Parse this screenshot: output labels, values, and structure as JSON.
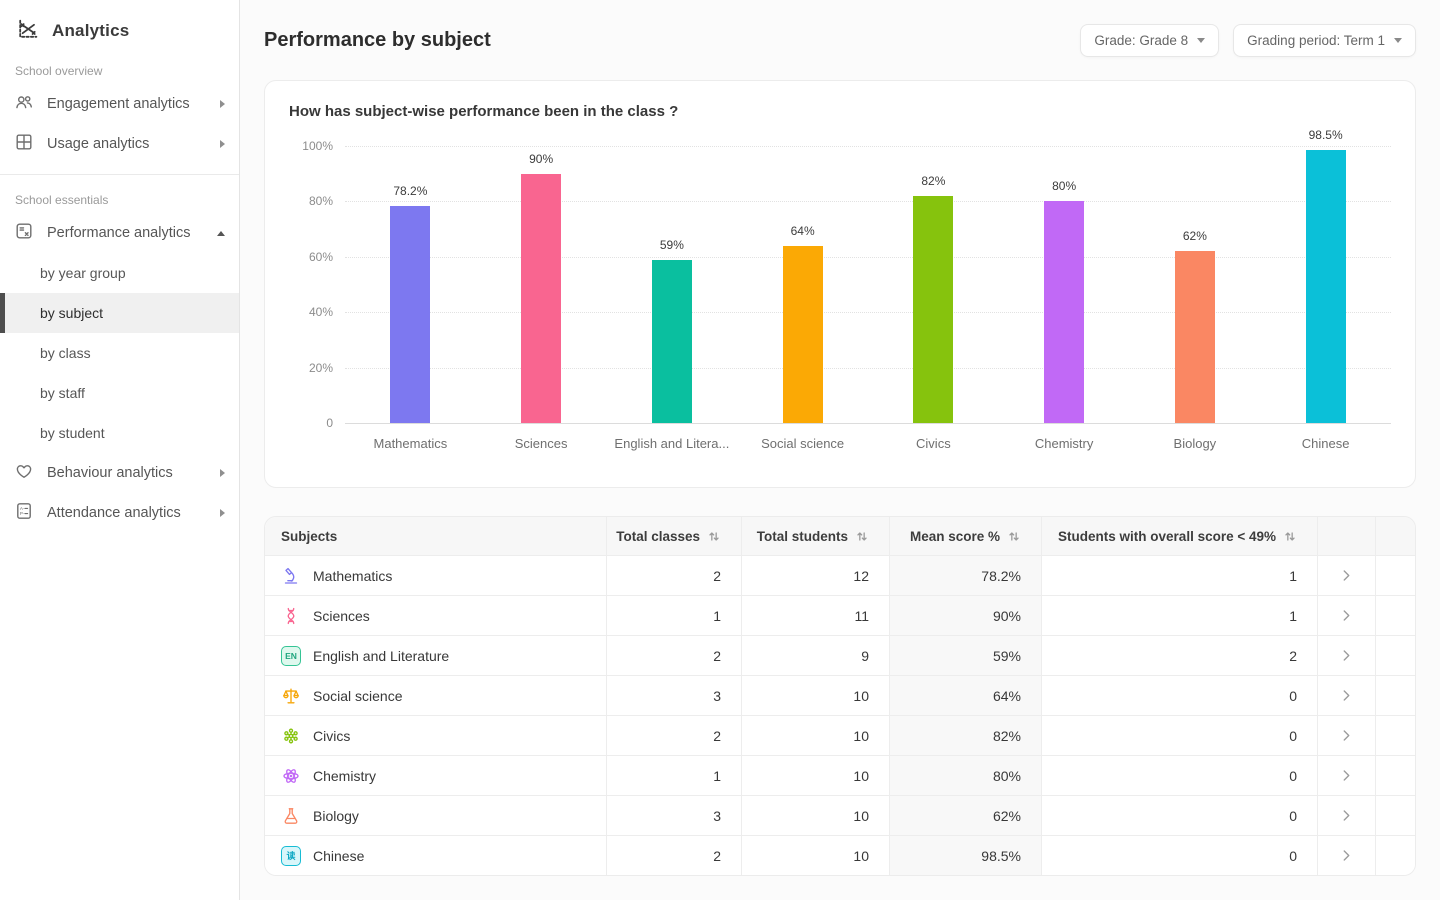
{
  "sidebar": {
    "title": "Analytics",
    "sections": [
      {
        "label": "School overview"
      },
      {
        "label": "School essentials"
      }
    ],
    "items": [
      {
        "label": "Engagement analytics",
        "icon": "people-icon"
      },
      {
        "label": "Usage analytics",
        "icon": "grid-icon"
      },
      {
        "label": "Performance analytics",
        "icon": "calculator-icon",
        "expanded": true
      },
      {
        "label": "Behaviour analytics",
        "icon": "heart-icon"
      },
      {
        "label": "Attendance analytics",
        "icon": "attendance-list-icon"
      }
    ],
    "performance_sub_items": [
      "by year group",
      "by subject",
      "by class",
      "by staff",
      "by student"
    ],
    "active_sub_item": "by subject"
  },
  "header": {
    "title": "Performance by subject",
    "grade_filter": "Grade: Grade 8",
    "period_filter": "Grading period: Term 1"
  },
  "chart_data": {
    "type": "bar",
    "title": "How has subject-wise performance been in the class ?",
    "categories": [
      "Mathematics",
      "Sciences",
      "English and Literature",
      "Social science",
      "Civics",
      "Chemistry",
      "Biology",
      "Chinese"
    ],
    "x_labels": [
      "Mathematics",
      "Sciences",
      "English and Litera...",
      "Social science",
      "Civics",
      "Chemistry",
      "Biology",
      "Chinese"
    ],
    "values": [
      78.2,
      90,
      59,
      64,
      82,
      80,
      62,
      98.5
    ],
    "value_labels": [
      "78.2%",
      "90%",
      "59%",
      "64%",
      "82%",
      "80%",
      "62%",
      "98.5%"
    ],
    "colors": [
      "#7D78F0",
      "#F96590",
      "#0ABF9F",
      "#FBA905",
      "#86C30D",
      "#C169F6",
      "#FA8763",
      "#0BC0D8"
    ],
    "yticks": [
      {
        "value": 100,
        "label": "100%"
      },
      {
        "value": 80,
        "label": "80%"
      },
      {
        "value": 60,
        "label": "60%"
      },
      {
        "value": 40,
        "label": "40%"
      },
      {
        "value": 20,
        "label": "20%"
      },
      {
        "value": 0,
        "label": "0"
      }
    ],
    "ylim": [
      0,
      100
    ],
    "grid": "horizontal-dotted",
    "legend": "none"
  },
  "icons_text": {
    "en_badge": "EN",
    "zh_badge": "读"
  },
  "table": {
    "columns": [
      {
        "label": "Subjects",
        "sortable": false
      },
      {
        "label": "Total classes",
        "sortable": true
      },
      {
        "label": "Total students",
        "sortable": true
      },
      {
        "label": "Mean score %",
        "sortable": true
      },
      {
        "label": "Students with overall score < 49%",
        "sortable": true
      }
    ],
    "rows": [
      {
        "subject": "Mathematics",
        "icon": "microscope-icon",
        "icon_color": "#7D78F0",
        "total_classes": 2,
        "total_students": 12,
        "mean_score": "78.2%",
        "below_49": 1
      },
      {
        "subject": "Sciences",
        "icon": "dna-icon",
        "icon_color": "#F96590",
        "total_classes": 1,
        "total_students": 11,
        "mean_score": "90%",
        "below_49": 1
      },
      {
        "subject": "English and Literature",
        "icon": "en-badge-icon",
        "icon_color": "#2FC193",
        "total_classes": 2,
        "total_students": 9,
        "mean_score": "59%",
        "below_49": 2
      },
      {
        "subject": "Social science",
        "icon": "scales-icon",
        "icon_color": "#F6A609",
        "total_classes": 3,
        "total_students": 10,
        "mean_score": "64%",
        "below_49": 0
      },
      {
        "subject": "Civics",
        "icon": "molecule-icon",
        "icon_color": "#86C30D",
        "total_classes": 2,
        "total_students": 10,
        "mean_score": "82%",
        "below_49": 0
      },
      {
        "subject": "Chemistry",
        "icon": "atom-icon",
        "icon_color": "#C169F6",
        "total_classes": 1,
        "total_students": 10,
        "mean_score": "80%",
        "below_49": 0
      },
      {
        "subject": "Biology",
        "icon": "flask-icon",
        "icon_color": "#FA8763",
        "total_classes": 3,
        "total_students": 10,
        "mean_score": "62%",
        "below_49": 0
      },
      {
        "subject": "Chinese",
        "icon": "zh-badge-icon",
        "icon_color": "#12BBD3",
        "total_classes": 2,
        "total_students": 10,
        "mean_score": "98.5%",
        "below_49": 0
      }
    ]
  }
}
